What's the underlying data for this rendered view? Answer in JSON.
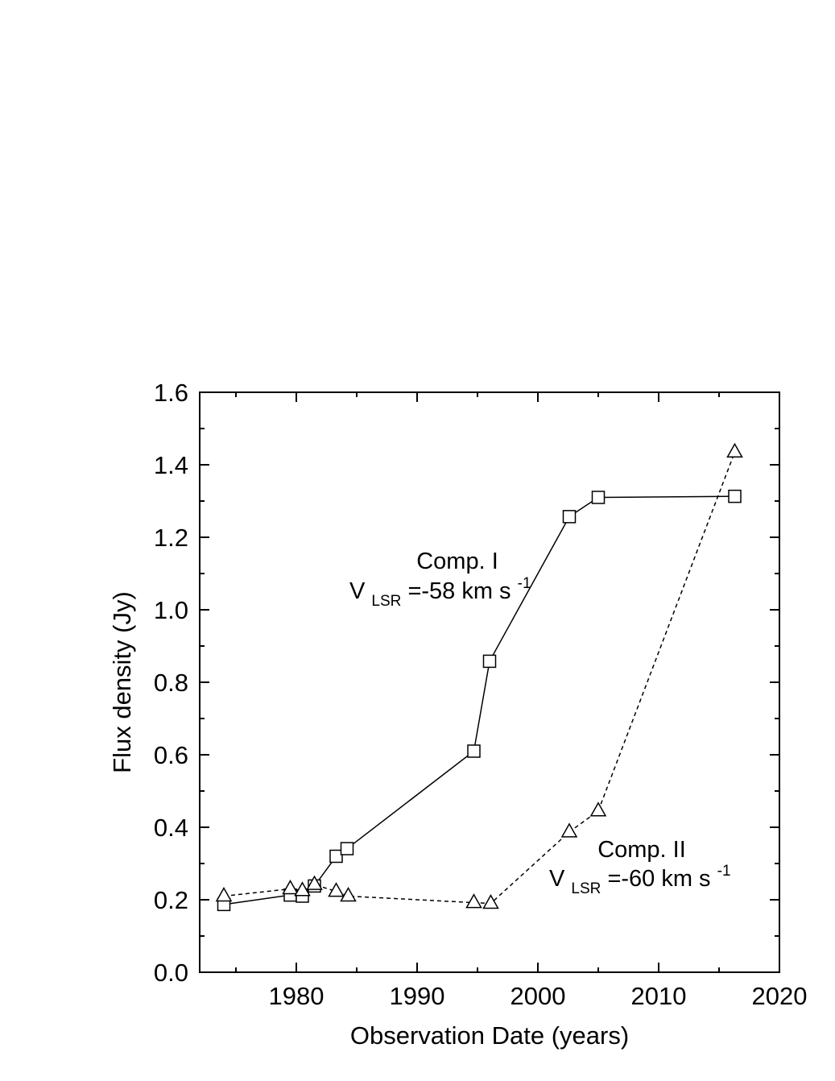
{
  "chart_data": {
    "type": "line",
    "xlabel": "Observation Date (years)",
    "ylabel": "Flux density (Jy)",
    "xlim": [
      1972,
      2020
    ],
    "ylim": [
      0.0,
      1.6
    ],
    "x_ticks": [
      1980,
      1990,
      2000,
      2010,
      2020
    ],
    "y_ticks": [
      0.0,
      0.2,
      0.4,
      0.6,
      0.8,
      1.0,
      1.2,
      1.4,
      1.6
    ],
    "y_tick_labels": [
      "0.0",
      "0.2",
      "0.4",
      "0.6",
      "0.8",
      "1.0",
      "1.2",
      "1.4",
      "1.6"
    ],
    "grid": false,
    "series": [
      {
        "marker": "square",
        "line_style": "solid",
        "x": [
          1974.0,
          1979.5,
          1980.5,
          1981.5,
          1983.3,
          1984.2,
          1994.7,
          1996.0,
          2002.6,
          2005.0,
          2016.3
        ],
        "y": [
          0.187,
          0.213,
          0.21,
          0.238,
          0.32,
          0.341,
          0.61,
          0.858,
          1.257,
          1.31,
          1.313
        ]
      },
      {
        "marker": "triangle",
        "line_style": "dashed",
        "x": [
          1974.0,
          1979.5,
          1980.5,
          1981.5,
          1983.3,
          1984.3,
          1994.7,
          1996.1,
          2002.6,
          2005.0,
          2016.3
        ],
        "y": [
          0.21,
          0.23,
          0.225,
          0.242,
          0.223,
          0.21,
          0.192,
          0.19,
          0.387,
          0.445,
          1.435
        ]
      }
    ],
    "annotations": [
      {
        "line1": "Comp. I",
        "main": "V",
        "sub": "LSR",
        "value": "=-58 km s",
        "sup": "-1"
      },
      {
        "line1": "Comp. II",
        "main": "V",
        "sub": "LSR",
        "value": "=-60 km s",
        "sup": "-1"
      }
    ]
  }
}
